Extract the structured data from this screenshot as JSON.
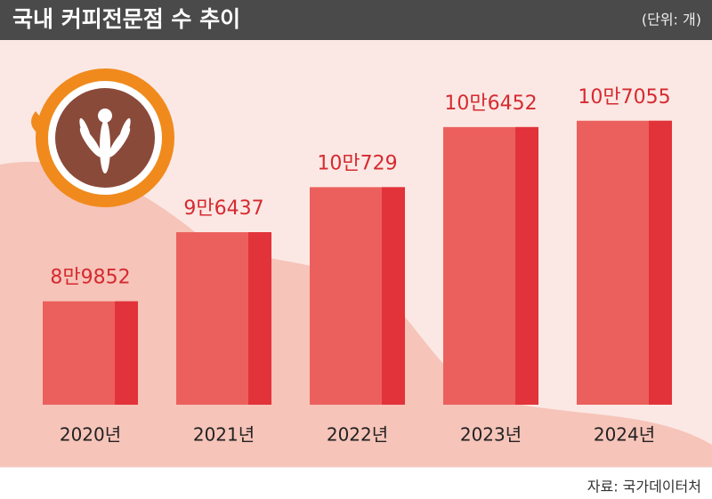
{
  "chart_data": {
    "type": "bar",
    "title": "국내 커피전문점 수 추이",
    "unit": "(단위: 개)",
    "source": "자료: 국가데이터처",
    "categories": [
      "2020년",
      "2021년",
      "2022년",
      "2023년",
      "2024년"
    ],
    "values": [
      89852,
      96437,
      100729,
      106452,
      107055
    ],
    "value_labels": [
      "8만9852",
      "9만6437",
      "10만729",
      "10만6452",
      "10만7055"
    ],
    "color": "#eb605d",
    "ylim": [
      80000,
      110000
    ]
  }
}
